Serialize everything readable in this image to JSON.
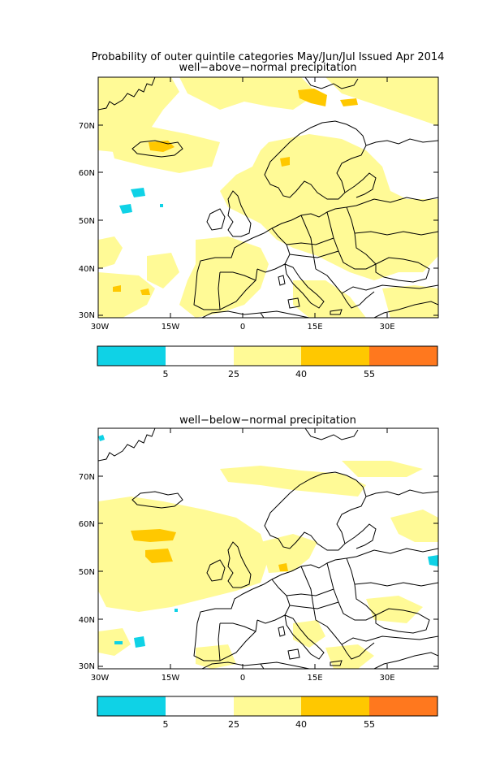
{
  "figure": {
    "title_line1": "Probability of outer quintile categories May/Jun/Jul Issued Apr 2014",
    "panel1_title": "well−above−normal precipitation",
    "panel2_title": "well−below−normal precipitation"
  },
  "map_axes": {
    "lat_labels": [
      "70N",
      "60N",
      "50N",
      "40N",
      "30N"
    ],
    "lon_labels": [
      "30W",
      "15W",
      "0",
      "15E",
      "30E"
    ]
  },
  "colorbar": {
    "labels": [
      "5",
      "25",
      "40",
      "55"
    ],
    "colors": {
      "below_5": "#0fd2e6",
      "5_25": "#ffffff",
      "25_40": "#fffa96",
      "40_55": "#ffc800",
      "above_55": "#ff781e"
    }
  },
  "colors": {
    "coastline": "#000000",
    "background": "#ffffff"
  }
}
